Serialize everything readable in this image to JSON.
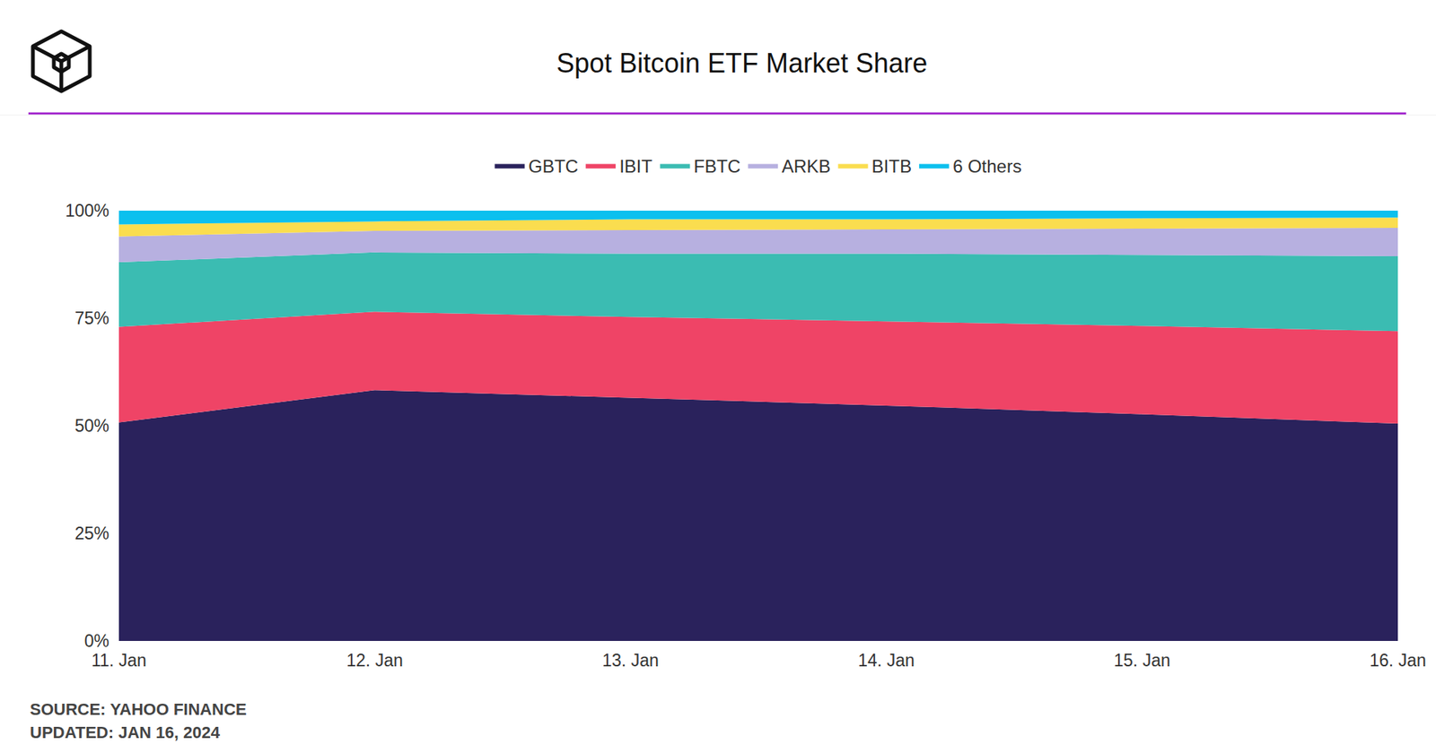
{
  "chart_data": {
    "type": "area",
    "title": "Spot Bitcoin ETF Market Share",
    "stacked": true,
    "legend": "top",
    "grid": false,
    "categories": [
      "11. Jan",
      "12. Jan",
      "13. Jan",
      "14. Jan",
      "15. Jan",
      "16. Jan"
    ],
    "series": [
      {
        "name": "GBTC",
        "color": "#2a225c",
        "values": [
          50.8,
          58.3,
          56.5,
          54.7,
          52.7,
          50.5
        ]
      },
      {
        "name": "IBIT",
        "color": "#ef4466",
        "values": [
          22.2,
          18.2,
          18.8,
          19.6,
          20.5,
          21.5
        ]
      },
      {
        "name": "FBTC",
        "color": "#3bbcb2",
        "values": [
          15.0,
          13.8,
          14.7,
          15.7,
          16.5,
          17.4
        ]
      },
      {
        "name": "ARKB",
        "color": "#b7b0e0",
        "values": [
          6.0,
          5.0,
          5.5,
          5.7,
          6.1,
          6.6
        ]
      },
      {
        "name": "BITB",
        "color": "#fadd4f",
        "values": [
          2.8,
          2.2,
          2.5,
          2.3,
          2.4,
          2.4
        ]
      },
      {
        "name": "6 Others",
        "color": "#0cc0ee",
        "values": [
          3.2,
          2.5,
          2.0,
          2.0,
          1.8,
          1.6
        ]
      }
    ],
    "ylim": [
      0,
      100
    ],
    "yticks": [
      {
        "value": 0,
        "label": "0%"
      },
      {
        "value": 25,
        "label": "25%"
      },
      {
        "value": 50,
        "label": "50%"
      },
      {
        "value": 75,
        "label": "75%"
      },
      {
        "value": 100,
        "label": "100%"
      }
    ],
    "annotations": [
      "SOURCE: YAHOO FINANCE",
      "UPDATED: JAN 16, 2024"
    ]
  }
}
